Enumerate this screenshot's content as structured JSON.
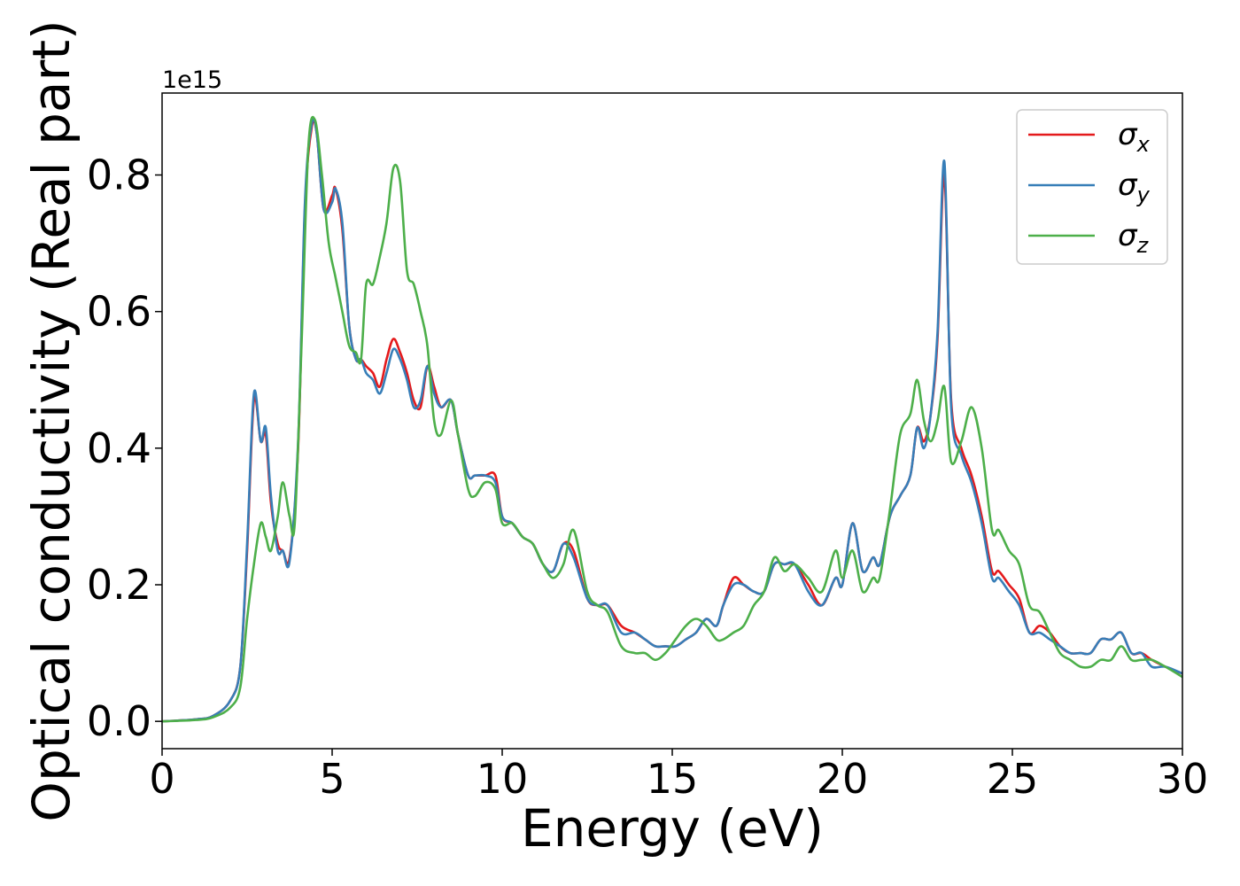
{
  "chart_data": {
    "type": "line",
    "xlabel": "Energy (eV)",
    "ylabel": "Optical conductivity (Real part)",
    "y_offset_label": "1e15",
    "xlim": [
      0,
      30
    ],
    "ylim": [
      -0.04,
      0.92
    ],
    "xticks": [
      0,
      5,
      10,
      15,
      20,
      25,
      30
    ],
    "xtick_labels": [
      "0",
      "5",
      "10",
      "15",
      "20",
      "25",
      "30"
    ],
    "yticks": [
      0.0,
      0.2,
      0.4,
      0.6,
      0.8
    ],
    "ytick_labels": [
      "0.0",
      "0.2",
      "0.4",
      "0.6",
      "0.8"
    ],
    "grid": false,
    "legend_position": "top-right",
    "series": [
      {
        "name": "σ",
        "subscript": "x",
        "color": "#e41a1c",
        "x": [
          0,
          1,
          1.5,
          2,
          2.3,
          2.5,
          2.7,
          2.9,
          3.05,
          3.2,
          3.4,
          3.55,
          3.75,
          4.0,
          4.2,
          4.4,
          4.55,
          4.75,
          5.0,
          5.1,
          5.3,
          5.5,
          5.7,
          5.85,
          6.0,
          6.2,
          6.4,
          6.6,
          6.8,
          7.0,
          7.2,
          7.4,
          7.6,
          7.8,
          8.0,
          8.2,
          8.5,
          8.7,
          9.0,
          9.2,
          9.5,
          9.8,
          10.0,
          10.3,
          10.6,
          10.9,
          11.2,
          11.5,
          11.8,
          12.1,
          12.5,
          12.8,
          13.1,
          13.5,
          13.9,
          14.2,
          14.5,
          14.8,
          15.1,
          15.4,
          15.7,
          16.0,
          16.3,
          16.5,
          16.8,
          17.1,
          17.4,
          17.7,
          18.0,
          18.3,
          18.6,
          19.0,
          19.4,
          19.8,
          20.0,
          20.3,
          20.6,
          20.9,
          21.1,
          21.4,
          21.7,
          22.0,
          22.2,
          22.4,
          22.6,
          22.8,
          23.0,
          23.2,
          23.5,
          23.8,
          24.1,
          24.4,
          24.6,
          24.9,
          25.2,
          25.5,
          25.8,
          26.1,
          26.4,
          26.7,
          27.0,
          27.3,
          27.6,
          27.9,
          28.2,
          28.5,
          28.8,
          29.1,
          29.5,
          30.0
        ],
        "values": [
          0.0,
          0.003,
          0.008,
          0.03,
          0.08,
          0.25,
          0.47,
          0.41,
          0.42,
          0.32,
          0.26,
          0.25,
          0.24,
          0.4,
          0.75,
          0.87,
          0.86,
          0.75,
          0.77,
          0.78,
          0.72,
          0.58,
          0.53,
          0.53,
          0.52,
          0.51,
          0.49,
          0.53,
          0.56,
          0.54,
          0.51,
          0.47,
          0.46,
          0.52,
          0.49,
          0.46,
          0.47,
          0.42,
          0.36,
          0.36,
          0.36,
          0.36,
          0.3,
          0.29,
          0.27,
          0.26,
          0.23,
          0.22,
          0.26,
          0.25,
          0.18,
          0.17,
          0.17,
          0.14,
          0.13,
          0.12,
          0.11,
          0.11,
          0.11,
          0.12,
          0.13,
          0.15,
          0.14,
          0.17,
          0.21,
          0.2,
          0.19,
          0.19,
          0.23,
          0.23,
          0.23,
          0.2,
          0.17,
          0.21,
          0.2,
          0.29,
          0.22,
          0.24,
          0.23,
          0.3,
          0.33,
          0.36,
          0.43,
          0.41,
          0.45,
          0.56,
          0.8,
          0.47,
          0.4,
          0.36,
          0.3,
          0.22,
          0.22,
          0.2,
          0.18,
          0.13,
          0.14,
          0.13,
          0.11,
          0.1,
          0.1,
          0.1,
          0.12,
          0.12,
          0.13,
          0.1,
          0.1,
          0.09,
          0.08,
          0.07
        ]
      },
      {
        "name": "σ",
        "subscript": "y",
        "color": "#377eb8",
        "x": [
          0,
          1,
          1.5,
          2,
          2.3,
          2.5,
          2.7,
          2.9,
          3.05,
          3.2,
          3.4,
          3.55,
          3.75,
          4.0,
          4.2,
          4.4,
          4.55,
          4.75,
          5.0,
          5.1,
          5.3,
          5.5,
          5.7,
          5.85,
          6.0,
          6.2,
          6.4,
          6.6,
          6.8,
          7.0,
          7.2,
          7.4,
          7.6,
          7.8,
          8.0,
          8.2,
          8.5,
          8.7,
          9.0,
          9.2,
          9.5,
          9.8,
          10.0,
          10.3,
          10.6,
          10.9,
          11.2,
          11.5,
          11.8,
          12.1,
          12.5,
          12.8,
          13.1,
          13.5,
          13.9,
          14.2,
          14.5,
          14.8,
          15.1,
          15.4,
          15.7,
          16.0,
          16.3,
          16.5,
          16.8,
          17.1,
          17.4,
          17.7,
          18.0,
          18.3,
          18.6,
          19.0,
          19.4,
          19.8,
          20.0,
          20.3,
          20.6,
          20.9,
          21.1,
          21.4,
          21.7,
          22.0,
          22.2,
          22.4,
          22.6,
          22.8,
          23.0,
          23.2,
          23.5,
          23.8,
          24.1,
          24.4,
          24.6,
          24.9,
          25.2,
          25.5,
          25.8,
          26.1,
          26.4,
          26.7,
          27.0,
          27.3,
          27.6,
          27.9,
          28.2,
          28.5,
          28.8,
          29.1,
          29.5,
          30.0
        ],
        "values": [
          0.0,
          0.003,
          0.008,
          0.03,
          0.08,
          0.26,
          0.48,
          0.41,
          0.43,
          0.33,
          0.25,
          0.25,
          0.235,
          0.41,
          0.76,
          0.875,
          0.86,
          0.75,
          0.76,
          0.78,
          0.73,
          0.58,
          0.53,
          0.53,
          0.51,
          0.5,
          0.48,
          0.51,
          0.545,
          0.53,
          0.5,
          0.46,
          0.47,
          0.52,
          0.48,
          0.46,
          0.47,
          0.42,
          0.36,
          0.36,
          0.36,
          0.35,
          0.3,
          0.29,
          0.27,
          0.26,
          0.23,
          0.22,
          0.26,
          0.24,
          0.18,
          0.17,
          0.17,
          0.13,
          0.13,
          0.12,
          0.11,
          0.11,
          0.11,
          0.12,
          0.13,
          0.15,
          0.14,
          0.17,
          0.2,
          0.2,
          0.19,
          0.19,
          0.23,
          0.23,
          0.23,
          0.19,
          0.17,
          0.21,
          0.2,
          0.29,
          0.22,
          0.24,
          0.23,
          0.3,
          0.33,
          0.36,
          0.43,
          0.4,
          0.45,
          0.57,
          0.82,
          0.46,
          0.39,
          0.35,
          0.29,
          0.21,
          0.21,
          0.19,
          0.17,
          0.13,
          0.13,
          0.12,
          0.11,
          0.1,
          0.1,
          0.1,
          0.12,
          0.12,
          0.13,
          0.1,
          0.1,
          0.08,
          0.08,
          0.07
        ]
      },
      {
        "name": "σ",
        "subscript": "z",
        "color": "#4daf4a",
        "x": [
          0,
          1,
          1.5,
          2,
          2.3,
          2.5,
          2.7,
          2.9,
          3.05,
          3.2,
          3.4,
          3.55,
          3.75,
          3.9,
          4.1,
          4.3,
          4.5,
          4.7,
          4.9,
          5.1,
          5.3,
          5.5,
          5.7,
          5.85,
          6.0,
          6.2,
          6.4,
          6.6,
          6.8,
          7.0,
          7.2,
          7.4,
          7.6,
          7.8,
          8.0,
          8.2,
          8.5,
          8.7,
          9.0,
          9.2,
          9.5,
          9.8,
          10.0,
          10.3,
          10.6,
          10.9,
          11.2,
          11.5,
          11.8,
          12.1,
          12.5,
          12.8,
          13.1,
          13.5,
          13.9,
          14.2,
          14.5,
          14.8,
          15.1,
          15.4,
          15.7,
          16.0,
          16.3,
          16.5,
          16.8,
          17.1,
          17.4,
          17.7,
          18.0,
          18.3,
          18.6,
          19.0,
          19.4,
          19.8,
          20.0,
          20.3,
          20.6,
          20.9,
          21.1,
          21.4,
          21.7,
          22.0,
          22.2,
          22.4,
          22.6,
          22.8,
          23.0,
          23.2,
          23.5,
          23.8,
          24.1,
          24.4,
          24.6,
          24.9,
          25.2,
          25.5,
          25.8,
          26.1,
          26.4,
          26.7,
          27.0,
          27.3,
          27.6,
          27.9,
          28.2,
          28.5,
          28.8,
          29.1,
          29.5,
          30.0
        ],
        "values": [
          0.0,
          0.002,
          0.006,
          0.02,
          0.05,
          0.15,
          0.23,
          0.29,
          0.27,
          0.25,
          0.3,
          0.35,
          0.3,
          0.29,
          0.55,
          0.84,
          0.88,
          0.8,
          0.7,
          0.65,
          0.6,
          0.55,
          0.54,
          0.53,
          0.64,
          0.64,
          0.68,
          0.73,
          0.81,
          0.79,
          0.66,
          0.64,
          0.6,
          0.55,
          0.44,
          0.42,
          0.47,
          0.42,
          0.34,
          0.33,
          0.35,
          0.34,
          0.29,
          0.29,
          0.27,
          0.26,
          0.23,
          0.21,
          0.23,
          0.28,
          0.19,
          0.17,
          0.16,
          0.11,
          0.1,
          0.1,
          0.09,
          0.1,
          0.12,
          0.14,
          0.15,
          0.14,
          0.12,
          0.12,
          0.13,
          0.14,
          0.17,
          0.19,
          0.24,
          0.22,
          0.23,
          0.21,
          0.19,
          0.25,
          0.21,
          0.25,
          0.19,
          0.21,
          0.21,
          0.31,
          0.42,
          0.45,
          0.5,
          0.44,
          0.41,
          0.44,
          0.49,
          0.38,
          0.41,
          0.46,
          0.4,
          0.28,
          0.28,
          0.25,
          0.23,
          0.17,
          0.16,
          0.13,
          0.1,
          0.09,
          0.08,
          0.08,
          0.09,
          0.09,
          0.11,
          0.09,
          0.09,
          0.09,
          0.08,
          0.065
        ]
      }
    ]
  }
}
